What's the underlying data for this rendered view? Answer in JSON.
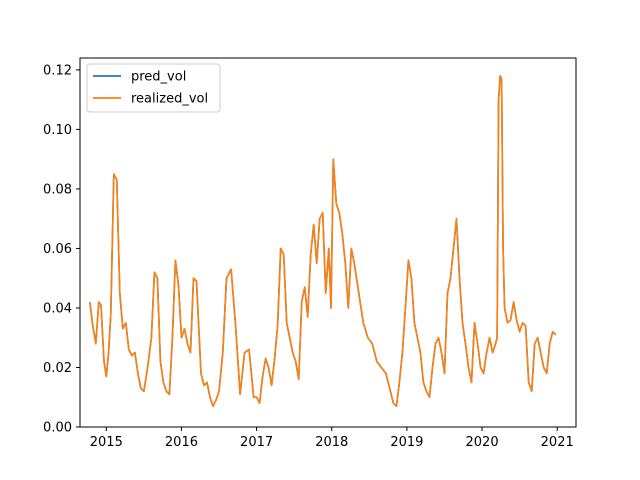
{
  "chart_data": {
    "type": "line",
    "title": "",
    "xlabel": "",
    "ylabel": "",
    "xlim": [
      2014.65,
      2021.25
    ],
    "ylim": [
      0.0,
      0.124
    ],
    "x_ticks": [
      2015,
      2016,
      2017,
      2018,
      2019,
      2020,
      2021
    ],
    "x_tick_labels": [
      "2015",
      "2016",
      "2017",
      "2018",
      "2019",
      "2020",
      "2021"
    ],
    "y_ticks": [
      0.0,
      0.02,
      0.04,
      0.06,
      0.08,
      0.1,
      0.12
    ],
    "y_tick_labels": [
      "0.00",
      "0.02",
      "0.04",
      "0.06",
      "0.08",
      "0.10",
      "0.12"
    ],
    "grid": false,
    "legend": {
      "placement": "top-left"
    },
    "colors": {
      "pred_vol": "#1f77b4",
      "realized_vol": "#ff7f0e"
    },
    "series": [
      {
        "name": "pred_vol",
        "x": [
          2014.78,
          2014.82,
          2014.86,
          2014.9,
          2014.93,
          2014.97,
          2015.0,
          2015.03,
          2015.06,
          2015.1,
          2015.14,
          2015.18,
          2015.22,
          2015.26,
          2015.3,
          2015.34,
          2015.38,
          2015.42,
          2015.46,
          2015.5,
          2015.55,
          2015.6,
          2015.64,
          2015.68,
          2015.72,
          2015.76,
          2015.8,
          2015.84,
          2015.88,
          2015.92,
          2015.96,
          2016.0,
          2016.04,
          2016.08,
          2016.12,
          2016.16,
          2016.2,
          2016.26,
          2016.3,
          2016.34,
          2016.38,
          2016.42,
          2016.46,
          2016.5,
          2016.55,
          2016.6,
          2016.66,
          2016.72,
          2016.78,
          2016.84,
          2016.9,
          2016.96,
          2017.0,
          2017.04,
          2017.08,
          2017.12,
          2017.16,
          2017.2,
          2017.24,
          2017.28,
          2017.32,
          2017.36,
          2017.4,
          2017.44,
          2017.48,
          2017.52,
          2017.56,
          2017.6,
          2017.64,
          2017.68,
          2017.72,
          2017.76,
          2017.8,
          2017.84,
          2017.88,
          2017.92,
          2017.96,
          2017.99,
          2018.02,
          2018.06,
          2018.1,
          2018.14,
          2018.18,
          2018.22,
          2018.26,
          2018.3,
          2018.36,
          2018.42,
          2018.48,
          2018.54,
          2018.6,
          2018.66,
          2018.72,
          2018.78,
          2018.82,
          2018.86,
          2018.9,
          2018.94,
          2018.98,
          2019.02,
          2019.06,
          2019.1,
          2019.14,
          2019.18,
          2019.22,
          2019.26,
          2019.3,
          2019.34,
          2019.38,
          2019.42,
          2019.46,
          2019.5,
          2019.54,
          2019.58,
          2019.62,
          2019.66,
          2019.7,
          2019.74,
          2019.78,
          2019.82,
          2019.86,
          2019.9,
          2019.94,
          2019.98,
          2020.02,
          2020.06,
          2020.1,
          2020.14,
          2020.18,
          2020.2,
          2020.22,
          2020.24,
          2020.26,
          2020.28,
          2020.3,
          2020.34,
          2020.38,
          2020.42,
          2020.46,
          2020.5,
          2020.54,
          2020.58,
          2020.62,
          2020.66,
          2020.7,
          2020.74,
          2020.78,
          2020.82,
          2020.86,
          2020.9,
          2020.94,
          2020.98
        ],
        "values": [
          0.042,
          0.034,
          0.028,
          0.042,
          0.041,
          0.022,
          0.017,
          0.025,
          0.038,
          0.085,
          0.083,
          0.045,
          0.033,
          0.035,
          0.026,
          0.024,
          0.025,
          0.018,
          0.013,
          0.012,
          0.02,
          0.03,
          0.052,
          0.05,
          0.022,
          0.015,
          0.012,
          0.011,
          0.03,
          0.056,
          0.048,
          0.03,
          0.033,
          0.028,
          0.025,
          0.05,
          0.049,
          0.018,
          0.014,
          0.015,
          0.01,
          0.007,
          0.009,
          0.012,
          0.025,
          0.05,
          0.053,
          0.034,
          0.011,
          0.025,
          0.026,
          0.01,
          0.01,
          0.008,
          0.017,
          0.023,
          0.02,
          0.014,
          0.023,
          0.034,
          0.06,
          0.058,
          0.035,
          0.03,
          0.025,
          0.022,
          0.016,
          0.042,
          0.047,
          0.037,
          0.058,
          0.068,
          0.055,
          0.07,
          0.072,
          0.045,
          0.06,
          0.04,
          0.09,
          0.075,
          0.072,
          0.065,
          0.055,
          0.04,
          0.06,
          0.055,
          0.045,
          0.035,
          0.03,
          0.028,
          0.022,
          0.02,
          0.018,
          0.012,
          0.008,
          0.007,
          0.015,
          0.025,
          0.04,
          0.056,
          0.05,
          0.035,
          0.03,
          0.025,
          0.015,
          0.012,
          0.01,
          0.02,
          0.028,
          0.03,
          0.025,
          0.018,
          0.045,
          0.05,
          0.06,
          0.07,
          0.05,
          0.035,
          0.028,
          0.02,
          0.015,
          0.035,
          0.028,
          0.02,
          0.018,
          0.025,
          0.03,
          0.025,
          0.028,
          0.03,
          0.11,
          0.118,
          0.117,
          0.06,
          0.04,
          0.035,
          0.036,
          0.042,
          0.036,
          0.032,
          0.035,
          0.034,
          0.015,
          0.012,
          0.028,
          0.03,
          0.025,
          0.02,
          0.018,
          0.028,
          0.032,
          0.031
        ],
        "color": "#1f77b4"
      },
      {
        "name": "realized_vol",
        "x": [
          2014.78,
          2014.82,
          2014.86,
          2014.9,
          2014.93,
          2014.97,
          2015.0,
          2015.03,
          2015.06,
          2015.1,
          2015.14,
          2015.18,
          2015.22,
          2015.26,
          2015.3,
          2015.34,
          2015.38,
          2015.42,
          2015.46,
          2015.5,
          2015.55,
          2015.6,
          2015.64,
          2015.68,
          2015.72,
          2015.76,
          2015.8,
          2015.84,
          2015.88,
          2015.92,
          2015.96,
          2016.0,
          2016.04,
          2016.08,
          2016.12,
          2016.16,
          2016.2,
          2016.26,
          2016.3,
          2016.34,
          2016.38,
          2016.42,
          2016.46,
          2016.5,
          2016.55,
          2016.6,
          2016.66,
          2016.72,
          2016.78,
          2016.84,
          2016.9,
          2016.96,
          2017.0,
          2017.04,
          2017.08,
          2017.12,
          2017.16,
          2017.2,
          2017.24,
          2017.28,
          2017.32,
          2017.36,
          2017.4,
          2017.44,
          2017.48,
          2017.52,
          2017.56,
          2017.6,
          2017.64,
          2017.68,
          2017.72,
          2017.76,
          2017.8,
          2017.84,
          2017.88,
          2017.92,
          2017.96,
          2017.99,
          2018.02,
          2018.06,
          2018.1,
          2018.14,
          2018.18,
          2018.22,
          2018.26,
          2018.3,
          2018.36,
          2018.42,
          2018.48,
          2018.54,
          2018.6,
          2018.66,
          2018.72,
          2018.78,
          2018.82,
          2018.86,
          2018.9,
          2018.94,
          2018.98,
          2019.02,
          2019.06,
          2019.1,
          2019.14,
          2019.18,
          2019.22,
          2019.26,
          2019.3,
          2019.34,
          2019.38,
          2019.42,
          2019.46,
          2019.5,
          2019.54,
          2019.58,
          2019.62,
          2019.66,
          2019.7,
          2019.74,
          2019.78,
          2019.82,
          2019.86,
          2019.9,
          2019.94,
          2019.98,
          2020.02,
          2020.06,
          2020.1,
          2020.14,
          2020.18,
          2020.2,
          2020.22,
          2020.24,
          2020.26,
          2020.28,
          2020.3,
          2020.34,
          2020.38,
          2020.42,
          2020.46,
          2020.5,
          2020.54,
          2020.58,
          2020.62,
          2020.66,
          2020.7,
          2020.74,
          2020.78,
          2020.82,
          2020.86,
          2020.9,
          2020.94,
          2020.98
        ],
        "values": [
          0.042,
          0.034,
          0.028,
          0.042,
          0.041,
          0.022,
          0.017,
          0.025,
          0.038,
          0.085,
          0.083,
          0.045,
          0.033,
          0.035,
          0.026,
          0.024,
          0.025,
          0.018,
          0.013,
          0.012,
          0.02,
          0.03,
          0.052,
          0.05,
          0.022,
          0.015,
          0.012,
          0.011,
          0.03,
          0.056,
          0.048,
          0.03,
          0.033,
          0.028,
          0.025,
          0.05,
          0.049,
          0.018,
          0.014,
          0.015,
          0.01,
          0.007,
          0.009,
          0.012,
          0.025,
          0.05,
          0.053,
          0.034,
          0.011,
          0.025,
          0.026,
          0.01,
          0.01,
          0.008,
          0.017,
          0.023,
          0.02,
          0.014,
          0.023,
          0.034,
          0.06,
          0.058,
          0.035,
          0.03,
          0.025,
          0.022,
          0.016,
          0.042,
          0.047,
          0.037,
          0.058,
          0.068,
          0.055,
          0.07,
          0.072,
          0.045,
          0.06,
          0.04,
          0.09,
          0.075,
          0.072,
          0.065,
          0.055,
          0.04,
          0.06,
          0.055,
          0.045,
          0.035,
          0.03,
          0.028,
          0.022,
          0.02,
          0.018,
          0.012,
          0.008,
          0.007,
          0.015,
          0.025,
          0.04,
          0.056,
          0.05,
          0.035,
          0.03,
          0.025,
          0.015,
          0.012,
          0.01,
          0.02,
          0.028,
          0.03,
          0.025,
          0.018,
          0.045,
          0.05,
          0.06,
          0.07,
          0.05,
          0.035,
          0.028,
          0.02,
          0.015,
          0.035,
          0.028,
          0.02,
          0.018,
          0.025,
          0.03,
          0.025,
          0.028,
          0.03,
          0.11,
          0.118,
          0.117,
          0.06,
          0.04,
          0.035,
          0.036,
          0.042,
          0.036,
          0.032,
          0.035,
          0.034,
          0.015,
          0.012,
          0.028,
          0.03,
          0.025,
          0.02,
          0.018,
          0.028,
          0.032,
          0.031
        ],
        "color": "#ff7f0e"
      }
    ]
  }
}
